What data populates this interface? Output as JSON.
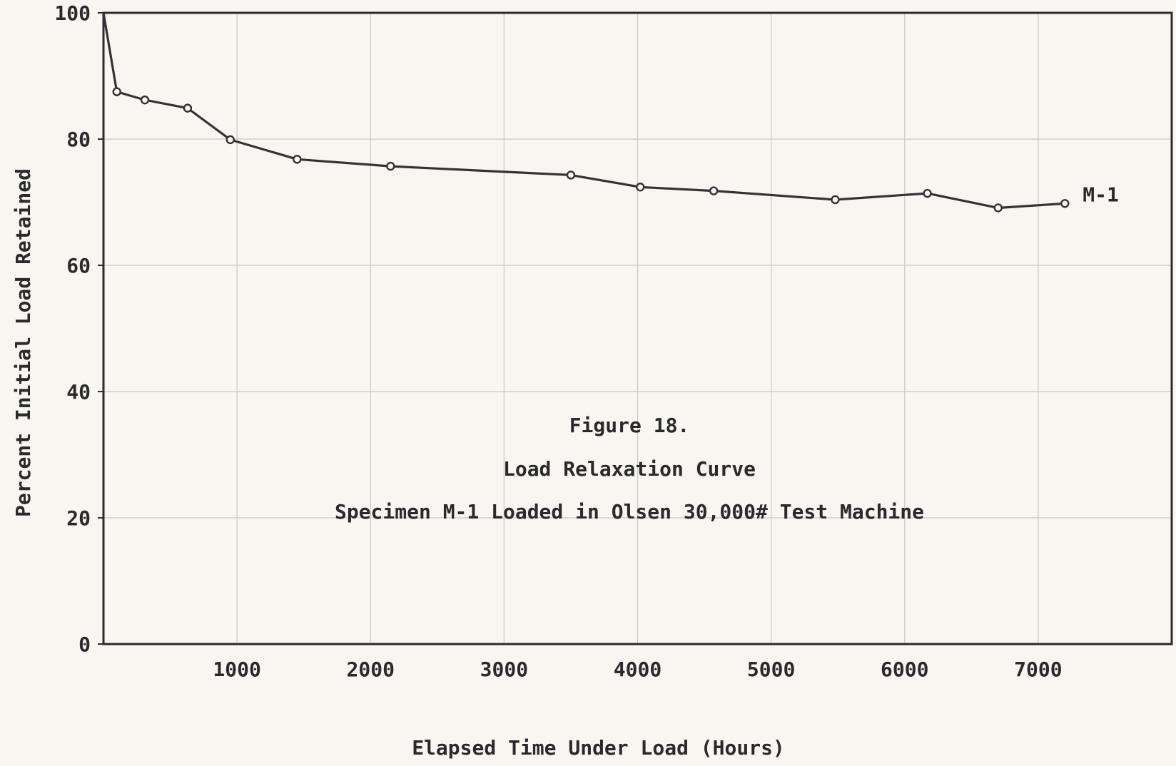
{
  "chart_data": {
    "type": "line",
    "xlabel": "Elapsed Time Under Load (Hours)",
    "ylabel": "Percent Initial Load Retained",
    "xlim": [
      0,
      8000
    ],
    "ylim": [
      0,
      100
    ],
    "x_ticks": [
      1000,
      2000,
      3000,
      4000,
      5000,
      6000,
      7000
    ],
    "x_tick_labels": [
      "1000",
      "2000",
      "3000",
      "4000",
      "5000",
      "6000",
      "7000"
    ],
    "y_ticks": [
      0,
      20,
      40,
      60,
      80,
      100
    ],
    "y_tick_labels": [
      "0",
      "20",
      "40",
      "60",
      "80",
      "100"
    ],
    "x_grid": [
      1000,
      2000,
      3000,
      4000,
      5000,
      6000,
      7000
    ],
    "y_grid": [
      20,
      40,
      60,
      80
    ],
    "grid": true,
    "annotations": [
      "Figure 18.",
      "Load Relaxation Curve",
      "Specimen M-1 Loaded in Olsen 30,000# Test Machine"
    ],
    "series": [
      {
        "name": "M-1",
        "x": [
          0,
          100,
          310,
          630,
          950,
          1450,
          2150,
          3500,
          4020,
          4570,
          5480,
          6170,
          6700,
          7200
        ],
        "y": [
          100,
          87.5,
          86.2,
          84.9,
          79.9,
          76.8,
          75.7,
          74.3,
          72.4,
          71.8,
          70.4,
          71.4,
          69.1,
          69.8
        ],
        "markers": [
          false,
          true,
          true,
          true,
          true,
          true,
          true,
          true,
          true,
          true,
          true,
          true,
          true,
          true
        ]
      }
    ]
  }
}
